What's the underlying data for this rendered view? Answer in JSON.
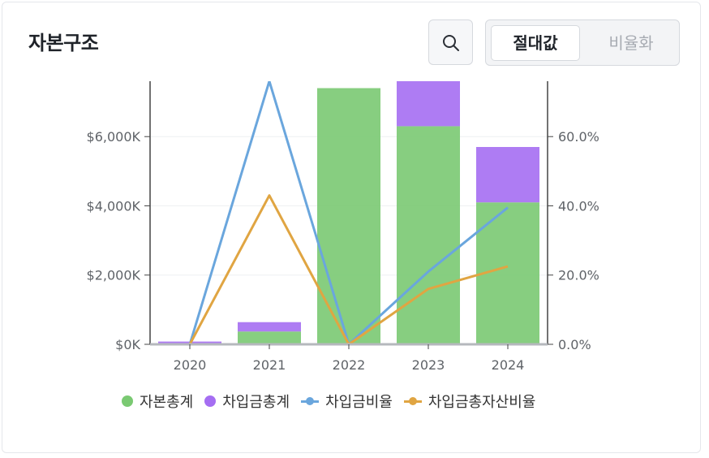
{
  "header": {
    "title": "자본구조"
  },
  "toolbar": {
    "search_icon": "search-icon",
    "toggle": {
      "active_label": "절대값",
      "inactive_label": "비율화"
    }
  },
  "chart_data": {
    "type": "bar",
    "stacked": true,
    "categories": [
      "2020",
      "2021",
      "2022",
      "2023",
      "2024"
    ],
    "y_left": {
      "ticks": [
        "$0K",
        "$2,000K",
        "$4,000K",
        "$6,000K"
      ],
      "range": [
        0,
        7600
      ]
    },
    "y_right": {
      "ticks": [
        "0.0%",
        "20.0%",
        "40.0%",
        "60.0%"
      ],
      "range": [
        0,
        76
      ]
    },
    "bar_series": [
      {
        "name": "자본총계",
        "color": "#7ac972",
        "values": [
          30,
          370,
          7400,
          6300,
          4100
        ]
      },
      {
        "name": "차입금총계",
        "color": "#a56ef2",
        "values": [
          50,
          270,
          0,
          1300,
          1600
        ]
      }
    ],
    "line_series": [
      {
        "name": "차입금비율",
        "color": "#6aa6dd",
        "axis": "right",
        "values": [
          0,
          76,
          0,
          21,
          39.5
        ]
      },
      {
        "name": "차입금총자산비율",
        "color": "#e0a542",
        "axis": "right",
        "values": [
          0,
          43,
          0,
          16,
          22.5
        ]
      }
    ],
    "legend_position": "bottom",
    "grid": true
  }
}
